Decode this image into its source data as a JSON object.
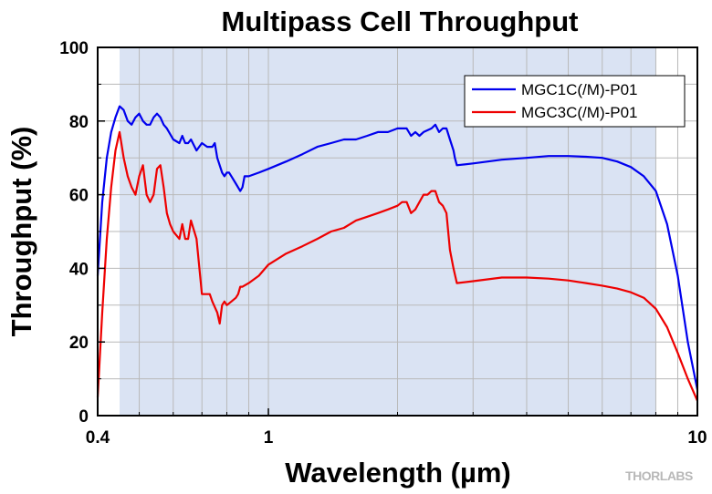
{
  "chart_data": {
    "type": "line",
    "title": "Multipass Cell Throughput",
    "xlabel": "Wavelength (µm)",
    "ylabel": "Throughput (%)",
    "x_scale": "log",
    "xlim": [
      0.4,
      10
    ],
    "ylim": [
      0,
      100
    ],
    "x_ticks": [
      0.4,
      1,
      10
    ],
    "x_tick_labels": [
      "0.4",
      "1",
      "10"
    ],
    "y_ticks": [
      0,
      20,
      40,
      60,
      80,
      100
    ],
    "y_tick_labels": [
      "0",
      "20",
      "40",
      "60",
      "80",
      "100"
    ],
    "grid": true,
    "legend_position": "top-right",
    "shaded_region": {
      "x_start": 0.45,
      "x_end": 8.0,
      "color": "#dae3f3"
    },
    "series": [
      {
        "name": "MGC1C(/M)-P01",
        "color": "#0000ee",
        "x": [
          0.4,
          0.41,
          0.42,
          0.43,
          0.44,
          0.45,
          0.46,
          0.47,
          0.48,
          0.49,
          0.5,
          0.51,
          0.52,
          0.53,
          0.54,
          0.55,
          0.56,
          0.57,
          0.58,
          0.6,
          0.62,
          0.63,
          0.64,
          0.65,
          0.66,
          0.68,
          0.7,
          0.72,
          0.74,
          0.75,
          0.76,
          0.78,
          0.79,
          0.8,
          0.81,
          0.82,
          0.84,
          0.86,
          0.87,
          0.88,
          0.89,
          0.9,
          0.95,
          1.0,
          1.1,
          1.2,
          1.3,
          1.4,
          1.5,
          1.6,
          1.7,
          1.8,
          1.9,
          2.0,
          2.1,
          2.15,
          2.2,
          2.25,
          2.3,
          2.4,
          2.45,
          2.5,
          2.55,
          2.6,
          2.65,
          2.7,
          2.72,
          2.75,
          3.0,
          3.5,
          4.0,
          4.5,
          5.0,
          5.5,
          6.0,
          6.5,
          7.0,
          7.5,
          8.0,
          8.5,
          9.0,
          9.5,
          10.0
        ],
        "values": [
          38,
          58,
          70,
          77,
          81,
          84,
          83,
          80,
          79,
          81,
          82,
          80,
          79,
          79,
          81,
          82,
          81,
          79,
          78,
          75,
          74,
          76,
          74,
          74,
          75,
          72,
          74,
          73,
          73,
          74,
          70,
          66,
          65,
          66,
          66,
          65,
          63,
          61,
          62,
          65,
          65,
          65,
          66,
          67,
          69,
          71,
          73,
          74,
          75,
          75,
          76,
          77,
          77,
          78,
          78,
          76,
          77,
          76,
          77,
          78,
          79,
          77,
          78,
          78,
          75,
          72,
          70,
          68,
          68.5,
          69.5,
          70,
          70.5,
          70.5,
          70.3,
          70,
          69,
          67.5,
          65,
          61,
          52,
          38,
          20,
          7
        ]
      },
      {
        "name": "MGC3C(/M)-P01",
        "color": "#ee0000",
        "x": [
          0.4,
          0.41,
          0.42,
          0.43,
          0.44,
          0.45,
          0.46,
          0.47,
          0.48,
          0.49,
          0.5,
          0.51,
          0.52,
          0.53,
          0.54,
          0.55,
          0.56,
          0.57,
          0.58,
          0.59,
          0.6,
          0.62,
          0.63,
          0.64,
          0.65,
          0.66,
          0.68,
          0.7,
          0.72,
          0.73,
          0.74,
          0.76,
          0.77,
          0.78,
          0.79,
          0.8,
          0.82,
          0.84,
          0.85,
          0.86,
          0.87,
          0.9,
          0.95,
          1.0,
          1.1,
          1.2,
          1.3,
          1.4,
          1.5,
          1.6,
          1.7,
          1.8,
          1.9,
          2.0,
          2.05,
          2.1,
          2.15,
          2.2,
          2.25,
          2.3,
          2.35,
          2.4,
          2.45,
          2.5,
          2.55,
          2.6,
          2.65,
          2.7,
          2.75,
          3.0,
          3.5,
          4.0,
          4.5,
          5.0,
          5.5,
          6.0,
          6.5,
          7.0,
          7.5,
          8.0,
          8.5,
          9.0,
          9.5,
          10.0
        ],
        "values": [
          5,
          28,
          48,
          62,
          72,
          77,
          70,
          65,
          62,
          60,
          65,
          68,
          60,
          58,
          60,
          67,
          68,
          62,
          55,
          52,
          50,
          48,
          52,
          48,
          48,
          53,
          48,
          33,
          33,
          33,
          31,
          28,
          25,
          30,
          31,
          30,
          31,
          32,
          33,
          35,
          35,
          36,
          38,
          41,
          44,
          46,
          48,
          50,
          51,
          53,
          54,
          55,
          56,
          57,
          58,
          58,
          55,
          56,
          58,
          60,
          60,
          61,
          61,
          58,
          57,
          55,
          45,
          40,
          36,
          36.5,
          37.5,
          37.5,
          37.2,
          36.7,
          36,
          35.3,
          34.5,
          33.5,
          32,
          29,
          24,
          17,
          10,
          4
        ]
      }
    ]
  },
  "watermark": "THORLABS"
}
